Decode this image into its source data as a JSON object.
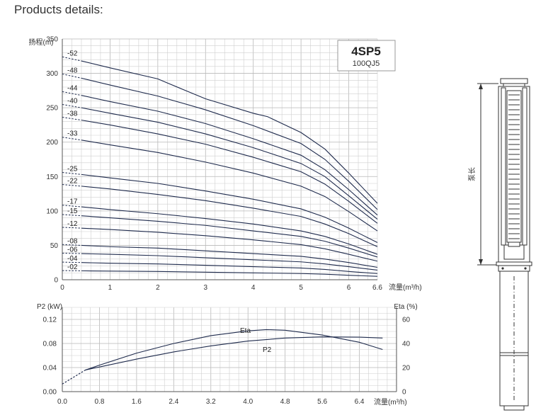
{
  "page": {
    "heading": "Products details:"
  },
  "model": {
    "name": "4SP5",
    "code": "100QJ5"
  },
  "pump_drawing": {
    "length_label": "泵长"
  },
  "chart_data": [
    {
      "type": "line",
      "title": "",
      "ylabel": "扬程(m)",
      "xlabel": "流量(m³/h)",
      "xlim": [
        0,
        6.6
      ],
      "ylim": [
        0,
        350
      ],
      "x_ticks": [
        "0",
        "1",
        "2",
        "3",
        "4",
        "5",
        "6",
        "6.6"
      ],
      "y_ticks": [
        "0",
        "50",
        "100",
        "150",
        "200",
        "250",
        "300",
        "350"
      ],
      "grid": true,
      "series": [
        {
          "name": "-52",
          "x": [
            0.4,
            1,
            2,
            2.2,
            3,
            4,
            4.3,
            5,
            5.5,
            6,
            6.6
          ],
          "y": [
            318,
            308,
            292,
            286,
            263,
            242,
            237,
            214,
            190,
            155,
            111
          ]
        },
        {
          "name": "-48",
          "x": [
            0.4,
            1,
            2,
            3,
            4,
            5,
            5.5,
            6,
            6.6
          ],
          "y": [
            293,
            283,
            267,
            247,
            224,
            198,
            175,
            143,
            102
          ]
        },
        {
          "name": "-44",
          "x": [
            0.4,
            1,
            2,
            3,
            4,
            5,
            5.5,
            6,
            6.6
          ],
          "y": [
            268,
            259,
            245,
            227,
            205,
            181,
            160,
            131,
            94
          ]
        },
        {
          "name": "-40",
          "x": [
            0.4,
            1,
            2,
            3,
            4,
            5,
            5.5,
            6,
            6.6
          ],
          "y": [
            250,
            242,
            229,
            212,
            192,
            169,
            150,
            122,
            88
          ]
        },
        {
          "name": "-38",
          "x": [
            0.4,
            1,
            2,
            3,
            4,
            5,
            5.5,
            6,
            6.6
          ],
          "y": [
            232,
            225,
            212,
            197,
            178,
            157,
            139,
            114,
            82
          ]
        },
        {
          "name": "-33",
          "x": [
            0.4,
            1,
            2,
            3,
            4,
            5,
            5.5,
            6,
            6.6
          ],
          "y": [
            203,
            196,
            185,
            171,
            155,
            136,
            121,
            99,
            71
          ]
        },
        {
          "name": "-25",
          "x": [
            0.4,
            1,
            2,
            3,
            4,
            5,
            5.5,
            6,
            6.6
          ],
          "y": [
            153,
            148,
            140,
            129,
            117,
            103,
            91,
            75,
            54
          ]
        },
        {
          "name": "-22",
          "x": [
            0.4,
            1,
            2,
            3,
            4,
            5,
            5.5,
            6,
            6.6
          ],
          "y": [
            136,
            132,
            124,
            115,
            104,
            92,
            81,
            67,
            48
          ]
        },
        {
          "name": "-17",
          "x": [
            0.4,
            1,
            2,
            3,
            4,
            5,
            5.5,
            6,
            6.6
          ],
          "y": [
            106,
            102,
            96,
            89,
            81,
            71,
            63,
            52,
            37
          ]
        },
        {
          "name": "-15",
          "x": [
            0.4,
            1,
            2,
            3,
            4,
            5,
            5.5,
            6,
            6.6
          ],
          "y": [
            93,
            90,
            85,
            79,
            71,
            63,
            56,
            46,
            33
          ]
        },
        {
          "name": "-12",
          "x": [
            0.4,
            1,
            2,
            3,
            4,
            5,
            5.5,
            6,
            6.6
          ],
          "y": [
            75,
            73,
            69,
            64,
            58,
            51,
            45,
            37,
            27
          ]
        },
        {
          "name": "-08",
          "x": [
            0.4,
            1,
            2,
            3,
            4,
            5,
            5.5,
            6,
            6.6
          ],
          "y": [
            50,
            48,
            46,
            42,
            38,
            34,
            30,
            25,
            18
          ]
        },
        {
          "name": "-06",
          "x": [
            0.4,
            1,
            2,
            3,
            4,
            5,
            5.5,
            6,
            6.6
          ],
          "y": [
            38,
            37,
            35,
            32,
            29,
            26,
            23,
            19,
            14
          ]
        },
        {
          "name": "-04",
          "x": [
            0.4,
            1,
            2,
            3,
            4,
            5,
            5.5,
            6,
            6.6
          ],
          "y": [
            25,
            24,
            23,
            21,
            19,
            17,
            15,
            12,
            9
          ]
        },
        {
          "name": "-02",
          "x": [
            0.4,
            1,
            2,
            3,
            4,
            5,
            5.5,
            6,
            6.6
          ],
          "y": [
            13,
            12.5,
            12,
            11,
            10,
            9,
            8,
            6.5,
            5
          ]
        }
      ]
    },
    {
      "type": "line",
      "title": "",
      "xlabel": "流量(m³/h)",
      "ylabel_left": "P2 (kW)",
      "ylabel_right": "Eta (%)",
      "xlim": [
        0,
        7.2
      ],
      "ylim_left": [
        0,
        0.14
      ],
      "ylim_right": [
        0,
        70
      ],
      "x_ticks": [
        "0.0",
        "0.8",
        "1.6",
        "2.4",
        "3.2",
        "4.0",
        "4.8",
        "5.6",
        "6.4"
      ],
      "y_ticks_left": [
        "0.00",
        "0.04",
        "0.08",
        "0.12"
      ],
      "y_ticks_right": [
        "0",
        "20",
        "40",
        "60"
      ],
      "grid": true,
      "series": [
        {
          "name": "Eta",
          "axis": "right",
          "x": [
            0.5,
            0.8,
            1.6,
            2.4,
            3.2,
            4.0,
            4.4,
            4.8,
            5.6,
            6.0,
            6.4,
            6.9
          ],
          "y": [
            18,
            22,
            32,
            40,
            46.5,
            50.5,
            51.5,
            51,
            47,
            44,
            41,
            35
          ]
        },
        {
          "name": "P2",
          "axis": "left",
          "x": [
            0.5,
            0.8,
            1.6,
            2.4,
            3.2,
            4.0,
            4.8,
            5.6,
            6.4,
            6.9
          ],
          "y": [
            0.036,
            0.041,
            0.054,
            0.066,
            0.076,
            0.084,
            0.089,
            0.091,
            0.0905,
            0.089
          ]
        }
      ]
    }
  ]
}
